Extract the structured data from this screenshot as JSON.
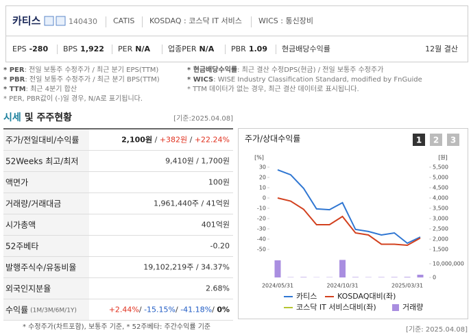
{
  "header": {
    "name": "카티스",
    "code": "140430",
    "english_name": "CATIS",
    "market": "KOSDAQ : 코스닥 IT 서비스",
    "wics": "WICS : 통신장비",
    "metrics": [
      {
        "label": "EPS",
        "value": "-280"
      },
      {
        "label": "BPS",
        "value": "1,922"
      },
      {
        "label": "PER",
        "value": "N/A"
      },
      {
        "label": "업종PER",
        "value": "N/A"
      },
      {
        "label": "PBR",
        "value": "1.09"
      }
    ],
    "dividend_label": "현금배당수익률",
    "fiscal": "12월 결산"
  },
  "notes_left": [
    {
      "term": "* PER",
      "text": ": 전일 보통주 수정주가 / 최근 분기 EPS(TTM)"
    },
    {
      "term": "* PBR",
      "text": ": 전일 보통주 수정주가 / 최근 분기 BPS(TTM)"
    },
    {
      "term": "* TTM",
      "text": ": 최근 4분기 합산"
    },
    {
      "text": "* PER, PBR값이 (-)일 경우, N/A로 표기됩니다."
    }
  ],
  "notes_right": [
    {
      "term": "* 현금배당수익률",
      "text": ": 최근 결산 수정DPS(현금) / 전일 보통주 수정주가"
    },
    {
      "term": "* WICS",
      "text": ": WISE Industry Classification Standard, modified by FnGuide"
    },
    {
      "text": "* TTM 데이터가 없는 경우, 최근 결산 데이터로 표시됩니다."
    }
  ],
  "section": {
    "title_highlight": "시세",
    "title_rest": "및 주주현황",
    "basis": "[기준:2025.04.08]"
  },
  "table": {
    "rows": [
      {
        "label": "주가/전일대비/수익률",
        "value": [
          {
            "text": "2,100원",
            "style": "bold"
          },
          {
            "text": " / "
          },
          {
            "text": "+382원",
            "style": "red"
          },
          {
            "text": " / "
          },
          {
            "text": "+22.24%",
            "style": "red"
          }
        ]
      },
      {
        "label": "52Weeks 최고/최저",
        "value": [
          {
            "text": "9,410원 / 1,700원"
          }
        ]
      },
      {
        "label": "액면가",
        "value": [
          {
            "text": "100원"
          }
        ]
      },
      {
        "label": "거래량/거래대금",
        "value": [
          {
            "text": "1,961,440주 / 41억원"
          }
        ]
      },
      {
        "label": "시가총액",
        "value": [
          {
            "text": "401억원"
          }
        ]
      },
      {
        "label": "52주베타",
        "value": [
          {
            "text": "-0.20"
          }
        ]
      },
      {
        "label": "발행주식수/유동비율",
        "value": [
          {
            "text": "19,102,219주 / 34.37%"
          }
        ]
      },
      {
        "label": "외국인지분율",
        "value": [
          {
            "text": "2.68%"
          }
        ]
      },
      {
        "label": "수익률",
        "label_note": "(1M/3M/6M/1Y)",
        "value": [
          {
            "text": "+2.44%",
            "style": "red"
          },
          {
            "text": "/ "
          },
          {
            "text": "-15.15%",
            "style": "blue"
          },
          {
            "text": "/ "
          },
          {
            "text": "-41.18%",
            "style": "blue"
          },
          {
            "text": "/ "
          },
          {
            "text": "0%",
            "style": "bold"
          }
        ]
      }
    ]
  },
  "footnote": "* 수정주가(차트포함), 보통주 기준, * 52주베타: 주간수익률 기준",
  "chart_tabs": [
    "1",
    "2",
    "3"
  ],
  "chart_basis": "[기준: 2025.04.08]",
  "chart_data": {
    "type": "line",
    "title": "주가/상대수익률",
    "y_unit": "[%]",
    "y2_unit": "[원]",
    "categories": [
      "2024/05/31",
      null,
      null,
      null,
      null,
      "2024/10/31",
      null,
      null,
      null,
      null,
      "2025/03/31",
      null
    ],
    "ylim": [
      -50,
      30
    ],
    "yticks": [
      30,
      20,
      10,
      0,
      -10,
      -20,
      -30,
      -40,
      -50
    ],
    "y2lim": [
      1500,
      5500
    ],
    "y2ticks": [
      {
        "value": 5500,
        "label": "5,500"
      },
      {
        "value": 5000,
        "label": "5,000"
      },
      {
        "value": 4500,
        "label": "4,500"
      },
      {
        "value": 4000,
        "label": "4,000"
      },
      {
        "value": 3500,
        "label": "3,500"
      },
      {
        "value": 3000,
        "label": "3,000"
      },
      {
        "value": 2500,
        "label": "2,500"
      },
      {
        "value": 2000,
        "label": "2,000"
      },
      {
        "value": 1500,
        "label": "1,500"
      }
    ],
    "y3lim": [
      0,
      13500000
    ],
    "y3ticks": [
      {
        "value": 10000000,
        "label": "10,000,000"
      },
      0
    ],
    "series": [
      {
        "name": "카티스",
        "color": "#2f76d2",
        "axis": "y2",
        "values": [
          5370,
          5130,
          4470,
          3470,
          3430,
          3770,
          2470,
          2370,
          2200,
          2300,
          1800,
          2100
        ]
      },
      {
        "name": "KOSDAQ대비(좌)",
        "color": "#d2401e",
        "values": [
          0,
          -3,
          -11,
          -26,
          -26,
          -18,
          -34,
          -36,
          -45,
          -45,
          -46,
          -39
        ]
      },
      {
        "name": "코스닥 IT 서비스대비(좌)",
        "color": "#b5c530",
        "values": [
          null,
          null,
          null,
          null,
          null,
          null,
          null,
          null,
          null,
          null,
          null,
          null
        ]
      },
      {
        "name": "거래량",
        "color": "#a98ee0",
        "type": "bar",
        "axis": "y3",
        "values": [
          12500000,
          200000,
          300000,
          150000,
          200000,
          12800000,
          300000,
          200000,
          250000,
          300000,
          400000,
          2000000
        ]
      }
    ]
  }
}
